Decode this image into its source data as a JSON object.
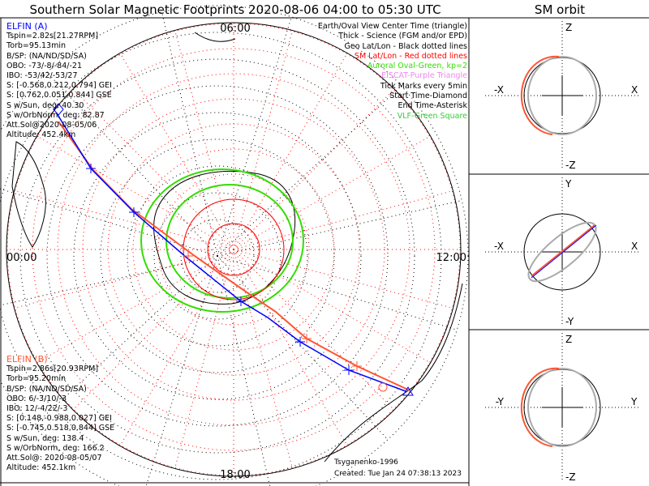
{
  "title": "Southern Solar Magnetic Footprints 2020-08-06 04:00 to 05:30 UTC",
  "right_title": "SM orbit",
  "mlt_labels": {
    "top": "06:00",
    "left": "00:00",
    "right": "12:00",
    "bottom": "18:00"
  },
  "elfin_a": {
    "name": "ELFIN (A)",
    "color": "#0000ff",
    "lines": [
      "Tspin=2.82s[21.27RPM]",
      "Torb=95.13min",
      "B/SP: (NA/ND/SD/SA)",
      "OBO: -73/-8/-84/-21",
      "IBO: -53/42/-53/27",
      "S: [-0.568,0.212,0.794] GEI",
      "S: [0.762,0.051,0.844] GSE",
      "S w/Sun, deg: 40.30",
      "S w/OrbNorm, deg: 82.87",
      "Att.Sol@2020-08-05/06",
      "Altitude: 452.4km"
    ]
  },
  "elfin_b": {
    "name": "ELFIN (B)",
    "color": "#ff5533",
    "lines": [
      "Tspin=2.86s[20.93RPM]",
      "Torb=95.20min",
      "B/SP: (NA/ND/SD/SA)",
      "OBO: 6/-3/10/-3",
      "IBO: 12/-4/22/-3",
      "S: [0.148,-0.988,0.027] GEI",
      "S: [-0.745,0.518,0.844] GSE",
      "S w/Sun, deg: 138.4",
      "S w/OrbNorm, deg: 166.2",
      "Att.Sol@: 2020-08-05/07",
      "Altitude: 452.1km"
    ]
  },
  "legend": [
    {
      "text": "Earth/Oval View Center Time (triangle)",
      "color": "#000000"
    },
    {
      "text": "Thick - Science (FGM and/or EPD)",
      "color": "#000000"
    },
    {
      "text": "Geo Lat/Lon - Black dotted lines",
      "color": "#000000"
    },
    {
      "text": "SM Lat/Lon - Red dotted lines",
      "color": "#ff0000"
    },
    {
      "text": "Auroral Oval-Green, kp=2",
      "color": "#33dd00"
    },
    {
      "text": "EISCAT-Purple Triangle",
      "color": "#ee88ee"
    },
    {
      "text": "Tick Marks every 5min",
      "color": "#000000"
    },
    {
      "text": "Start Time-Diamond",
      "color": "#000000"
    },
    {
      "text": "End Time-Asterisk",
      "color": "#000000"
    },
    {
      "text": "VLF-Green Square",
      "color": "#33cc33"
    }
  ],
  "model": "Tsyganenko-1996",
  "created": "Created: Tue Jan 24 07:38:13 2023",
  "orbit_panels": [
    {
      "top": "Z",
      "bottom": "-Z",
      "left": "-X",
      "right": "X"
    },
    {
      "top": "Y",
      "bottom": "-Y",
      "left": "-X",
      "right": "X"
    },
    {
      "top": "Z",
      "bottom": "-Z",
      "left": "-Y",
      "right": "Y"
    }
  ],
  "chart_data": {
    "type": "scatter",
    "title": "Southern Solar Magnetic Footprints 2020-08-06 04:00 to 05:30 UTC",
    "projection": "polar SM MLT/latitude, southern hemisphere",
    "mlt_ticks": [
      "00:00",
      "06:00",
      "12:00",
      "18:00"
    ],
    "series": [
      {
        "name": "ELFIN (A)",
        "color": "#0000ff"
      },
      {
        "name": "ELFIN (B)",
        "color": "#ff5533"
      }
    ]
  }
}
